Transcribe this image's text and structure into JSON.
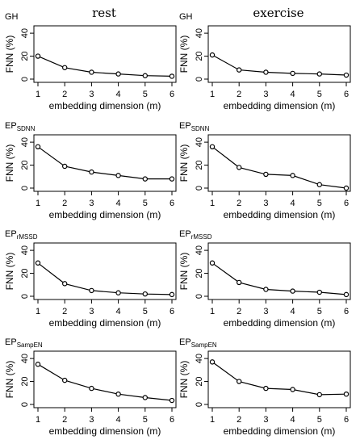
{
  "column_titles": [
    "rest",
    "exercise"
  ],
  "chart_data": [
    {
      "type": "line",
      "title_main": "GH",
      "title_sub": "",
      "xlabel": "embedding dimension (m)",
      "ylabel": "FNN (%)",
      "x": [
        1,
        2,
        3,
        4,
        5,
        6
      ],
      "x_ticks": [
        "1",
        "2",
        "3",
        "4",
        "5",
        "6"
      ],
      "y_ticks": [
        "0",
        "20",
        "40"
      ],
      "ylim": [
        0,
        45
      ],
      "values": [
        20,
        10,
        6,
        4.5,
        3,
        2.5
      ],
      "grid": false
    },
    {
      "type": "line",
      "title_main": "GH",
      "title_sub": "",
      "xlabel": "embedding dimension (m)",
      "ylabel": "FNN (%)",
      "x": [
        1,
        2,
        3,
        4,
        5,
        6
      ],
      "x_ticks": [
        "1",
        "2",
        "3",
        "4",
        "5",
        "6"
      ],
      "y_ticks": [
        "0",
        "20",
        "40"
      ],
      "ylim": [
        0,
        45
      ],
      "values": [
        21,
        8,
        6,
        5,
        4.5,
        3.5
      ],
      "grid": false
    },
    {
      "type": "line",
      "title_main": "EP",
      "title_sub": "SDNN",
      "xlabel": "embedding dimension (m)",
      "ylabel": "FNN (%)",
      "x": [
        1,
        2,
        3,
        4,
        5,
        6
      ],
      "x_ticks": [
        "1",
        "2",
        "3",
        "4",
        "5",
        "6"
      ],
      "y_ticks": [
        "0",
        "20",
        "40"
      ],
      "ylim": [
        0,
        45
      ],
      "values": [
        36,
        19,
        14,
        11,
        8,
        8
      ],
      "grid": false
    },
    {
      "type": "line",
      "title_main": "EP",
      "title_sub": "SDNN",
      "xlabel": "embedding dimension (m)",
      "ylabel": "FNN (%)",
      "x": [
        1,
        2,
        3,
        4,
        5,
        6
      ],
      "x_ticks": [
        "1",
        "2",
        "3",
        "4",
        "5",
        "6"
      ],
      "y_ticks": [
        "0",
        "20",
        "40"
      ],
      "ylim": [
        0,
        45
      ],
      "values": [
        36,
        18,
        12,
        11,
        3,
        0
      ],
      "grid": false
    },
    {
      "type": "line",
      "title_main": "EP",
      "title_sub": "rMSSD",
      "xlabel": "embedding dimension (m)",
      "ylabel": "FNN (%)",
      "x": [
        1,
        2,
        3,
        4,
        5,
        6
      ],
      "x_ticks": [
        "1",
        "2",
        "3",
        "4",
        "5",
        "6"
      ],
      "y_ticks": [
        "0",
        "20",
        "40"
      ],
      "ylim": [
        0,
        45
      ],
      "values": [
        29,
        11,
        5,
        3,
        2,
        1.5
      ],
      "grid": false
    },
    {
      "type": "line",
      "title_main": "EP",
      "title_sub": "rMSSD",
      "xlabel": "embedding dimension (m)",
      "ylabel": "FNN (%)",
      "x": [
        1,
        2,
        3,
        4,
        5,
        6
      ],
      "x_ticks": [
        "1",
        "2",
        "3",
        "4",
        "5",
        "6"
      ],
      "y_ticks": [
        "0",
        "20",
        "40"
      ],
      "ylim": [
        0,
        45
      ],
      "values": [
        29,
        12,
        6,
        4.5,
        3.5,
        1.5
      ],
      "grid": false
    },
    {
      "type": "line",
      "title_main": "EP",
      "title_sub": "SampEN",
      "xlabel": "embedding dimension (m)",
      "ylabel": "FNN (%)",
      "x": [
        1,
        2,
        3,
        4,
        5,
        6
      ],
      "x_ticks": [
        "1",
        "2",
        "3",
        "4",
        "5",
        "6"
      ],
      "y_ticks": [
        "0",
        "20",
        "40"
      ],
      "ylim": [
        0,
        45
      ],
      "values": [
        35,
        21,
        14,
        9,
        6,
        3.5
      ],
      "grid": false
    },
    {
      "type": "line",
      "title_main": "EP",
      "title_sub": "SampEN",
      "xlabel": "embedding dimension (m)",
      "ylabel": "FNN (%)",
      "x": [
        1,
        2,
        3,
        4,
        5,
        6
      ],
      "x_ticks": [
        "1",
        "2",
        "3",
        "4",
        "5",
        "6"
      ],
      "y_ticks": [
        "0",
        "20",
        "40"
      ],
      "ylim": [
        0,
        45
      ],
      "values": [
        37,
        20,
        14,
        13,
        8.5,
        9
      ],
      "grid": false
    }
  ]
}
